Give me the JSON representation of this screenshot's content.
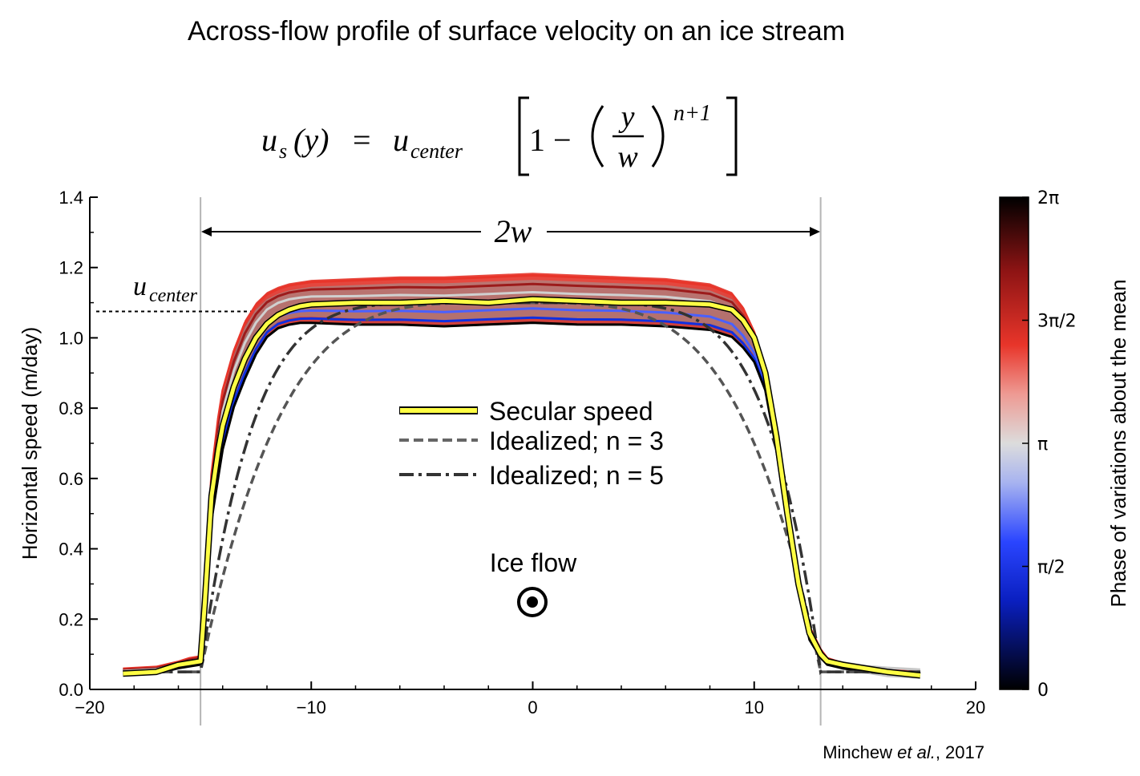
{
  "title": "Across-flow profile of surface velocity on an ice stream",
  "equation": {
    "lhs": "u",
    "lhs_sub": "s",
    "lhs_arg": "(y)",
    "equals": "=",
    "rhs_u": "u",
    "rhs_sub": "center",
    "one_minus": "1 −",
    "frac_num": "y",
    "frac_den": "w",
    "exponent": "n+1"
  },
  "annotations": {
    "width_label": "2w",
    "ucenter_u": "u",
    "ucenter_sub": "center",
    "ice_flow": "Ice flow",
    "credit_name": "Minchew ",
    "credit_etal": "et al.",
    "credit_year": ", 2017"
  },
  "colorbar": {
    "label": "Phase of variations about the mean",
    "ticks": [
      "0",
      "π/2",
      "π",
      "3π/2",
      "2π"
    ],
    "colors": [
      "#000000",
      "#0022cc",
      "#1a3aff",
      "#d8d8d8",
      "#e8352a",
      "#a01818",
      "#000000"
    ]
  },
  "chart_data": {
    "type": "line",
    "title": "Across-flow profile of surface velocity on an ice stream",
    "xlabel": "",
    "ylabel": "Horizontal speed (m/day)",
    "xlim": [
      -20,
      20
    ],
    "ylim": [
      0.0,
      1.4
    ],
    "xticks": [
      "−20",
      "−10",
      "0",
      "10",
      "20"
    ],
    "yticks": [
      "0.0",
      "0.2",
      "0.4",
      "0.6",
      "0.8",
      "1.0",
      "1.2",
      "1.4"
    ],
    "shear_margins_x": [
      -15,
      13
    ],
    "ucenter": 1.075,
    "legend": [
      "Secular speed",
      "Idealized; n = 3",
      "Idealized; n = 5"
    ],
    "legend_loc": "center",
    "secular_speed": {
      "x": [
        -18.5,
        -17,
        -16,
        -15.5,
        -15,
        -14.8,
        -14.5,
        -14.2,
        -14,
        -13.5,
        -13,
        -12.5,
        -12,
        -11.5,
        -11,
        -10.5,
        -10,
        -8,
        -6,
        -4,
        -2,
        0,
        2,
        4,
        6,
        8,
        9,
        9.5,
        10,
        10.5,
        11,
        11.5,
        12,
        12.5,
        13,
        13.3,
        14,
        15,
        16,
        17.5
      ],
      "y": [
        0.045,
        0.05,
        0.07,
        0.075,
        0.08,
        0.25,
        0.55,
        0.68,
        0.75,
        0.86,
        0.94,
        1.0,
        1.04,
        1.065,
        1.08,
        1.09,
        1.095,
        1.1,
        1.1,
        1.105,
        1.1,
        1.11,
        1.105,
        1.1,
        1.1,
        1.095,
        1.08,
        1.05,
        1.0,
        0.9,
        0.72,
        0.5,
        0.3,
        0.16,
        0.1,
        0.08,
        0.07,
        0.06,
        0.05,
        0.04
      ]
    },
    "phase_band": {
      "upper": [
        0.06,
        0.065,
        0.08,
        0.09,
        0.095,
        0.3,
        0.62,
        0.78,
        0.86,
        0.97,
        1.05,
        1.1,
        1.13,
        1.145,
        1.155,
        1.16,
        1.165,
        1.17,
        1.175,
        1.175,
        1.18,
        1.185,
        1.18,
        1.175,
        1.17,
        1.155,
        1.13,
        1.09,
        1.02,
        0.92,
        0.74,
        0.52,
        0.32,
        0.18,
        0.115,
        0.09,
        0.075,
        0.065,
        0.055,
        0.05
      ],
      "lower": [
        0.04,
        0.045,
        0.06,
        0.065,
        0.07,
        0.2,
        0.48,
        0.6,
        0.68,
        0.8,
        0.88,
        0.95,
        1.0,
        1.025,
        1.035,
        1.04,
        1.04,
        1.035,
        1.035,
        1.03,
        1.035,
        1.04,
        1.035,
        1.035,
        1.03,
        1.02,
        1.0,
        0.97,
        0.93,
        0.85,
        0.68,
        0.47,
        0.28,
        0.14,
        0.09,
        0.07,
        0.06,
        0.05,
        0.045,
        0.04
      ]
    },
    "idealized_n3": {
      "x_range": [
        -15,
        13
      ],
      "ucenter": 1.1,
      "baseline": 0.05,
      "n": 3
    },
    "idealized_n5": {
      "x_range": [
        -15,
        13
      ],
      "ucenter": 1.1,
      "baseline": 0.05,
      "n": 5
    },
    "colors": {
      "secular": "#ffff44",
      "n3": "#555555",
      "n5": "#333333",
      "band": "#999999"
    }
  }
}
